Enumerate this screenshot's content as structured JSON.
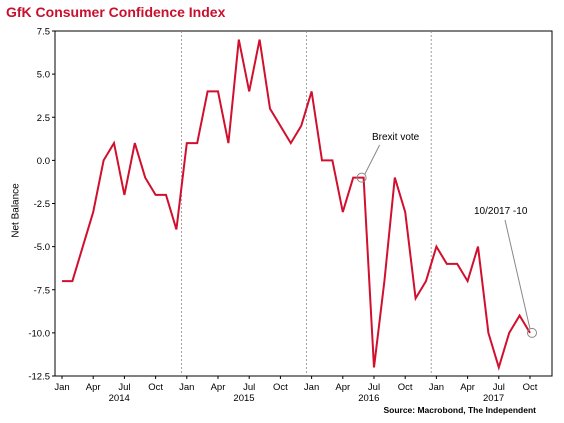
{
  "title": "GfK Consumer Confidence Index",
  "source": "Source: Macrobond, The Independent",
  "chart_data": {
    "type": "line",
    "title": "GfK Consumer Confidence Index",
    "xlabel": "",
    "ylabel": "Net Balance",
    "ylim": [
      -12.5,
      7.5
    ],
    "yticks": [
      "7.5",
      "5.0",
      "2.5",
      "0.0",
      "-2.5",
      "-5.0",
      "-7.5",
      "-10.0",
      "-12.5"
    ],
    "month_ticks": [
      "Jan",
      "Apr",
      "Jul",
      "Oct",
      "Jan",
      "Apr",
      "Jul",
      "Oct",
      "Jan",
      "Apr",
      "Jul",
      "Oct",
      "Jan",
      "Apr",
      "Jul",
      "Oct"
    ],
    "year_labels": [
      "2014",
      "2015",
      "2016",
      "2017"
    ],
    "grid": "vertical dotted at year start",
    "color": "#d0102e",
    "x": [
      "2014-01",
      "2014-02",
      "2014-03",
      "2014-04",
      "2014-05",
      "2014-06",
      "2014-07",
      "2014-08",
      "2014-09",
      "2014-10",
      "2014-11",
      "2014-12",
      "2015-01",
      "2015-02",
      "2015-03",
      "2015-04",
      "2015-05",
      "2015-06",
      "2015-07",
      "2015-08",
      "2015-09",
      "2015-10",
      "2015-11",
      "2015-12",
      "2016-01",
      "2016-02",
      "2016-03",
      "2016-04",
      "2016-05",
      "2016-06",
      "2016-07",
      "2016-08",
      "2016-09",
      "2016-10",
      "2016-11",
      "2016-12",
      "2017-01",
      "2017-02",
      "2017-03",
      "2017-04",
      "2017-05",
      "2017-06",
      "2017-07",
      "2017-08",
      "2017-09",
      "2017-10"
    ],
    "values": [
      -7,
      -7,
      -5,
      -3,
      0,
      1,
      -2,
      1,
      -1,
      -2,
      -2,
      -4,
      1,
      1,
      4,
      4,
      1,
      7,
      4,
      7,
      3,
      2,
      1,
      2,
      4,
      0,
      0,
      -3,
      -1,
      -1,
      -12,
      -7,
      -1,
      -3,
      -8,
      -7,
      -5,
      -6,
      -6,
      -7,
      -5,
      -10,
      -12,
      -10,
      -9,
      -10
    ],
    "annotations": [
      {
        "text": "Brexit vote",
        "x": "2016-06",
        "y": -1
      },
      {
        "text": "10/2017 -10",
        "x": "2017-10",
        "y": -10
      }
    ]
  }
}
